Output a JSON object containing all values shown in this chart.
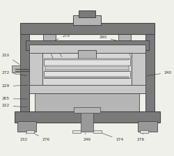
{
  "bg_color": "#f0f0eb",
  "dark_gray": "#7a7a7a",
  "med_dark_gray": "#999999",
  "medium_gray": "#b5b5b5",
  "light_gray": "#cccccc",
  "very_light_gray": "#e2e2e2",
  "hatch_fill": "#c8c8c8",
  "inner_fill": "#d8d8d8",
  "white_ish": "#ebebeb",
  "line_color": "#444444",
  "label_color": "#333333",
  "label_fs": 4.2,
  "lw_heavy": 0.7,
  "lw_med": 0.5,
  "lw_light": 0.4
}
